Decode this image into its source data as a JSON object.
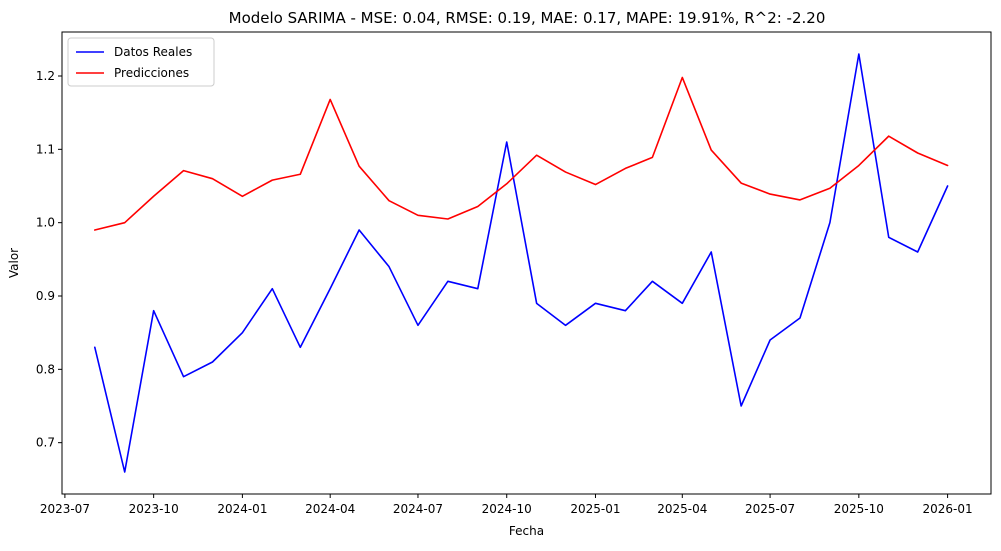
{
  "chart_data": {
    "type": "line",
    "title": "Modelo SARIMA - MSE: 0.04, RMSE: 0.19, MAE: 0.17, MAPE: 19.91%, R^2: -2.20",
    "xlabel": "Fecha",
    "ylabel": "Valor",
    "x": [
      "2023-08",
      "2023-09",
      "2023-10",
      "2023-11",
      "2023-12",
      "2024-01",
      "2024-02",
      "2024-03",
      "2024-04",
      "2024-05",
      "2024-06",
      "2024-07",
      "2024-08",
      "2024-09",
      "2024-10",
      "2024-11",
      "2024-12",
      "2025-01",
      "2025-02",
      "2025-03",
      "2025-04",
      "2025-05",
      "2025-06",
      "2025-07",
      "2025-08",
      "2025-09",
      "2025-10",
      "2025-11",
      "2025-12",
      "2026-01"
    ],
    "series": [
      {
        "name": "Datos Reales",
        "color": "#0000ff",
        "values": [
          0.83,
          0.66,
          0.88,
          0.79,
          0.81,
          0.85,
          0.91,
          0.83,
          0.91,
          0.99,
          0.94,
          0.86,
          0.92,
          0.91,
          1.11,
          0.89,
          0.86,
          0.89,
          0.88,
          0.92,
          0.89,
          0.96,
          0.75,
          0.84,
          0.87,
          1.0,
          1.23,
          0.98,
          0.96,
          1.05
        ]
      },
      {
        "name": "Predicciones",
        "color": "#ff0000",
        "values": [
          0.99,
          1.0,
          1.036,
          1.071,
          1.06,
          1.036,
          1.058,
          1.066,
          1.168,
          1.077,
          1.03,
          1.01,
          1.005,
          1.022,
          1.053,
          1.092,
          1.069,
          1.052,
          1.074,
          1.089,
          1.198,
          1.099,
          1.054,
          1.039,
          1.031,
          1.047,
          1.078,
          1.118,
          1.095,
          1.078
        ]
      }
    ],
    "x_ticks": [
      "2023-07",
      "2023-10",
      "2024-01",
      "2024-04",
      "2024-07",
      "2024-10",
      "2025-01",
      "2025-04",
      "2025-07",
      "2025-10",
      "2026-01"
    ],
    "y_ticks": [
      "0.7",
      "0.8",
      "0.9",
      "1.0",
      "1.1",
      "1.2"
    ],
    "ylim": [
      0.63,
      1.26
    ],
    "xlim": [
      "2023-06-28",
      "2026-02-15"
    ],
    "grid": false,
    "legend_position": "top-left"
  }
}
